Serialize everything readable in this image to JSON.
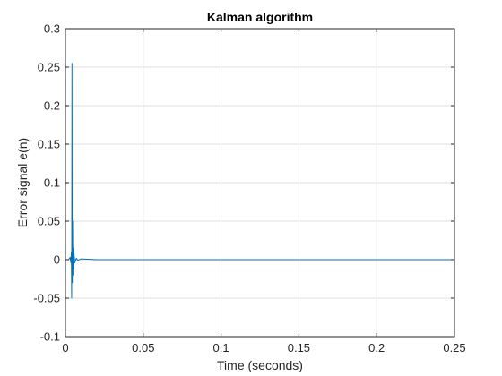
{
  "chart_data": {
    "type": "line",
    "title": "Kalman algorithm",
    "xlabel": "Time (seconds)",
    "ylabel": "Error signal e(n)",
    "xlim": [
      0,
      0.25
    ],
    "ylim": [
      -0.1,
      0.3
    ],
    "xticks": [
      0,
      0.05,
      0.1,
      0.15,
      0.2,
      0.25
    ],
    "xtick_labels": [
      "0",
      "0.05",
      "0.1",
      "0.15",
      "0.2",
      "0.25"
    ],
    "yticks": [
      -0.1,
      -0.05,
      0,
      0.05,
      0.1,
      0.15,
      0.2,
      0.25,
      0.3
    ],
    "ytick_labels": [
      "-0.1",
      "-0.05",
      "0",
      "0.05",
      "0.1",
      "0.15",
      "0.2",
      "0.25",
      "0.3"
    ],
    "grid": true,
    "series": [
      {
        "color": "#0072BD",
        "x": [
          0,
          0.002,
          0.003,
          0.0035,
          0.0038,
          0.004,
          0.0042,
          0.0044,
          0.0046,
          0.0048,
          0.005,
          0.0052,
          0.0055,
          0.006,
          0.007,
          0.008,
          0.01,
          0.02,
          0.05,
          0.1,
          0.15,
          0.2,
          0.25
        ],
        "y": [
          0,
          0,
          0.003,
          -0.004,
          0.01,
          -0.05,
          0.255,
          -0.03,
          0.05,
          -0.02,
          0.015,
          -0.012,
          0.008,
          -0.004,
          0.002,
          -0.001,
          0.001,
          0,
          0,
          0,
          0,
          0,
          0
        ]
      }
    ]
  }
}
